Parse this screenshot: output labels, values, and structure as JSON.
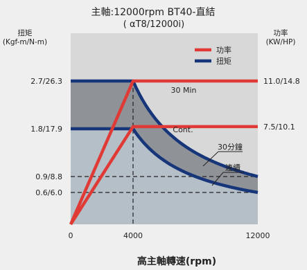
{
  "chart_data": {
    "type": "line",
    "title": "主軸:12000rpm BT40-直結",
    "subtitle": "( αT8/12000i)",
    "xlabel": "高主軸轉速(rpm)",
    "y_left_label_line1": "扭矩",
    "y_left_label_line2": "(Kgf-m/N-m)",
    "y_right_label_line1": "功率",
    "y_right_label_line2": "(KW/HP)",
    "x_ticks": [
      "0",
      "4000",
      "12000"
    ],
    "x_tick_values": [
      0,
      4000,
      12000
    ],
    "xlim": [
      0,
      12000
    ],
    "y_left_ticks": [
      {
        "label": "2.7/26.3",
        "value": 2.7
      },
      {
        "label": "1.8/17.9",
        "value": 1.8
      },
      {
        "label": "0.9/8.8",
        "value": 0.9
      },
      {
        "label": "0.6/6.0",
        "value": 0.6
      }
    ],
    "y_right_ticks": [
      {
        "label": "11.0/14.8",
        "value": 11.0
      },
      {
        "label": "7.5/10.1",
        "value": 7.5
      }
    ],
    "ylim_left": [
      0,
      3.6
    ],
    "ylim_right": [
      0,
      14.67
    ],
    "legend": [
      {
        "name": "功率",
        "color": "#e03a36"
      },
      {
        "name": "扭矩",
        "color": "#17367a"
      }
    ],
    "legend_position": "top-right",
    "series": [
      {
        "name": "30 Min",
        "kind": "power",
        "color": "#e03a36",
        "x": [
          0,
          4000,
          12000
        ],
        "y": [
          0,
          11.0,
          11.0
        ]
      },
      {
        "name": "Cont.",
        "kind": "power",
        "color": "#e03a36",
        "x": [
          0,
          4000,
          12000
        ],
        "y": [
          0,
          7.5,
          7.5
        ]
      },
      {
        "name": "30分鐘",
        "kind": "torque",
        "color": "#17367a",
        "x": [
          0,
          4000,
          6000,
          8000,
          10000,
          12000
        ],
        "y": [
          2.7,
          2.7,
          1.8,
          1.35,
          1.08,
          0.9
        ]
      },
      {
        "name": "連續",
        "kind": "torque",
        "color": "#17367a",
        "x": [
          0,
          4000,
          6000,
          8000,
          10000,
          12000
        ],
        "y": [
          1.8,
          1.8,
          1.2,
          0.9,
          0.72,
          0.6
        ]
      }
    ],
    "annotations": [
      "30 Min",
      "Cont.",
      "30分鐘",
      "連續"
    ],
    "colors": {
      "plot_bg": "#d8d8d8",
      "fill_light": "#b5bfc8",
      "fill_dark": "#8f9296",
      "power": "#e03a36",
      "torque": "#17367a",
      "guide": "#222222"
    }
  }
}
